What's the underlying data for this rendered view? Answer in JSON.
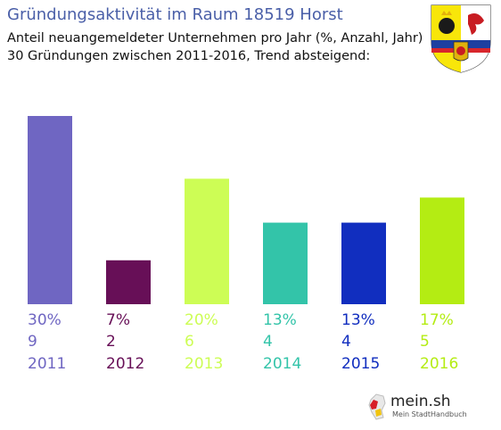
{
  "header": {
    "title": "Gründungsaktivität im Raum 18519 Horst",
    "subtitle_line1": "Anteil neuangemeldeter Unternehmen pro Jahr (%, Anzahl, Jahr)",
    "subtitle_line2": "30 Gründungen zwischen 2011-2016, Trend absteigend:"
  },
  "chart_data": {
    "type": "bar",
    "categories": [
      "2011",
      "2012",
      "2013",
      "2014",
      "2015",
      "2016"
    ],
    "values": [
      30,
      7,
      20,
      13,
      13,
      17
    ],
    "percent_labels": [
      "30%",
      "7%",
      "20%",
      "13%",
      "13%",
      "17%"
    ],
    "count_labels": [
      "9",
      "2",
      "6",
      "4",
      "4",
      "5"
    ],
    "colors": [
      "#6f66c2",
      "#670f57",
      "#cdfd55",
      "#33c4a9",
      "#112ebf",
      "#b4ec13"
    ],
    "ylim": [
      0,
      30
    ],
    "grid": false,
    "legend": "none"
  },
  "logo": {
    "name": "mein.sh",
    "tagline": "Mein StadtHandbuch"
  }
}
